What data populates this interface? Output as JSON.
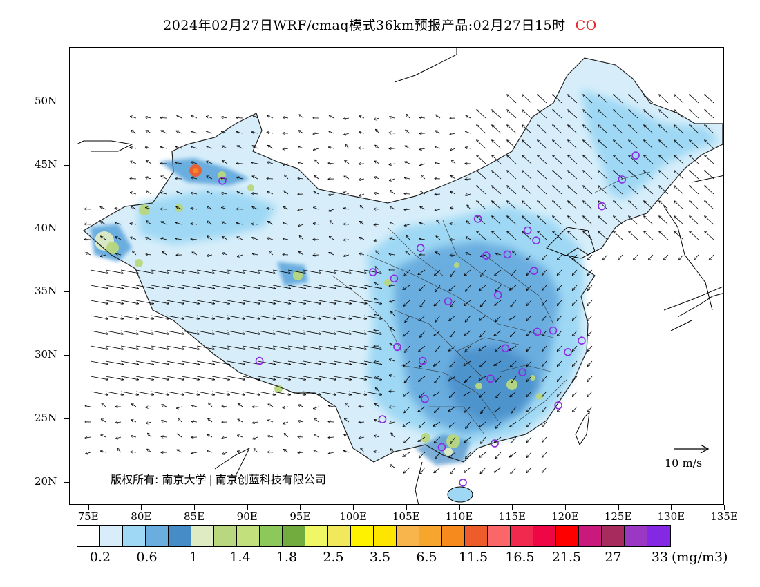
{
  "title": {
    "text": "2024年02月27日WRF/cmaq模式36km预报产品:02月27日15时",
    "species": "CO"
  },
  "latitude_labels": [
    "50N",
    "45N",
    "40N",
    "35N",
    "30N",
    "25N",
    "20N"
  ],
  "longitude_labels": [
    "75E",
    "80E",
    "85E",
    "90E",
    "95E",
    "100E",
    "105E",
    "110E",
    "115E",
    "120E",
    "125E",
    "130E",
    "135E"
  ],
  "copyright": {
    "label": "版权所有:",
    "org1": "南京大学",
    "org2": "南京创蓝科技有限公司"
  },
  "wind_scale": {
    "label": "10 m/s"
  },
  "colorbar": {
    "colors": [
      "#ffffff",
      "#d7eefa",
      "#9fd8f4",
      "#6aaddf",
      "#468dc8",
      "#dfebc2",
      "#b8d77e",
      "#c2e07c",
      "#8dc95a",
      "#72ab3e",
      "#f0f765",
      "#f1e85c",
      "#fff200",
      "#fde500",
      "#f7b54b",
      "#f6a62c",
      "#f78a1d",
      "#ef5c2c",
      "#fb6668",
      "#f2294f",
      "#ee0645",
      "#fe0000",
      "#c9197d",
      "#a72b5d",
      "#9a38c4",
      "#8428e3"
    ],
    "labels": [
      "0.2",
      "0.6",
      "1",
      "1.4",
      "1.8",
      "2.5",
      "3.5",
      "6.5",
      "11.5",
      "16.5",
      "21.5",
      "27",
      "33"
    ],
    "unit": "(mg/m3)"
  },
  "map": {
    "extent": {
      "lon_min": 73.2,
      "lon_max": 135,
      "lat_min": 18.2,
      "lat_max": 54.3
    },
    "stations": [
      [
        116.4,
        39.9
      ],
      [
        117.2,
        39.1
      ],
      [
        114.5,
        38.0
      ],
      [
        112.5,
        37.9
      ],
      [
        111.7,
        40.8
      ],
      [
        123.4,
        41.8
      ],
      [
        125.3,
        43.9
      ],
      [
        126.6,
        45.8
      ],
      [
        117.0,
        36.7
      ],
      [
        113.6,
        34.8
      ],
      [
        108.9,
        34.3
      ],
      [
        103.8,
        36.1
      ],
      [
        101.8,
        36.6
      ],
      [
        106.3,
        38.5
      ],
      [
        104.1,
        30.7
      ],
      [
        106.5,
        29.6
      ],
      [
        114.3,
        30.6
      ],
      [
        112.9,
        28.2
      ],
      [
        115.9,
        28.7
      ],
      [
        117.3,
        31.9
      ],
      [
        118.8,
        32.0
      ],
      [
        120.2,
        30.3
      ],
      [
        121.5,
        31.2
      ],
      [
        119.3,
        26.1
      ],
      [
        113.3,
        23.1
      ],
      [
        108.3,
        22.8
      ],
      [
        110.3,
        20.0
      ],
      [
        106.7,
        26.6
      ],
      [
        102.7,
        25.0
      ],
      [
        91.1,
        29.6
      ],
      [
        87.6,
        43.8
      ]
    ]
  }
}
